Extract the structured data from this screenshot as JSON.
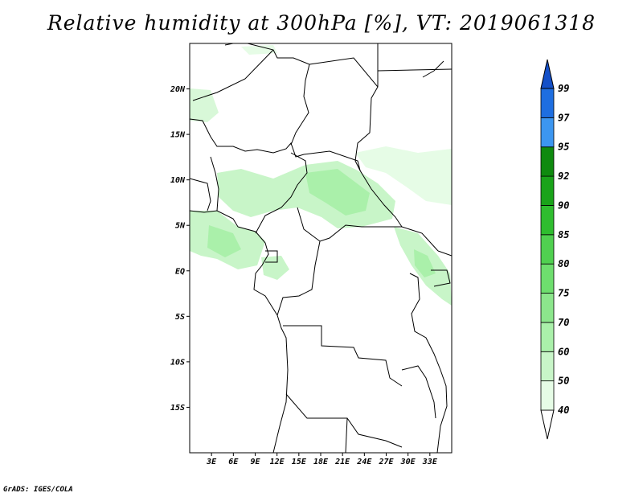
{
  "title": "Relative humidity at 300hPa [%], VT: 2019061318",
  "footer": "GrADS: IGES/COLA",
  "map": {
    "lon_range": [
      0,
      36
    ],
    "lat_range": [
      -20,
      25
    ],
    "lat_ticks": [
      {
        "value": 20,
        "label": "20N"
      },
      {
        "value": 15,
        "label": "15N"
      },
      {
        "value": 10,
        "label": "10N"
      },
      {
        "value": 5,
        "label": "5N"
      },
      {
        "value": 0,
        "label": "EQ"
      },
      {
        "value": -5,
        "label": "5S"
      },
      {
        "value": -10,
        "label": "10S"
      },
      {
        "value": -15,
        "label": "15S"
      }
    ],
    "lon_ticks": [
      {
        "value": 3,
        "label": "3E"
      },
      {
        "value": 6,
        "label": "6E"
      },
      {
        "value": 9,
        "label": "9E"
      },
      {
        "value": 12,
        "label": "12E"
      },
      {
        "value": 15,
        "label": "15E"
      },
      {
        "value": 18,
        "label": "18E"
      },
      {
        "value": 21,
        "label": "21E"
      },
      {
        "value": 24,
        "label": "24E"
      },
      {
        "value": 27,
        "label": "27E"
      },
      {
        "value": 30,
        "label": "30E"
      },
      {
        "value": 33,
        "label": "33E"
      }
    ]
  },
  "legend": {
    "levels": [
      "40",
      "50",
      "60",
      "70",
      "75",
      "80",
      "85",
      "90",
      "92",
      "95",
      "97",
      "99"
    ],
    "colors": [
      "#ffffff",
      "#e6fce6",
      "#c8f5c8",
      "#aaf0aa",
      "#8ce68c",
      "#6ede6e",
      "#50d050",
      "#2fbd2f",
      "#1aa31a",
      "#0f8a0f",
      "#3c96f0",
      "#1e6ee0",
      "#1450c8"
    ]
  }
}
